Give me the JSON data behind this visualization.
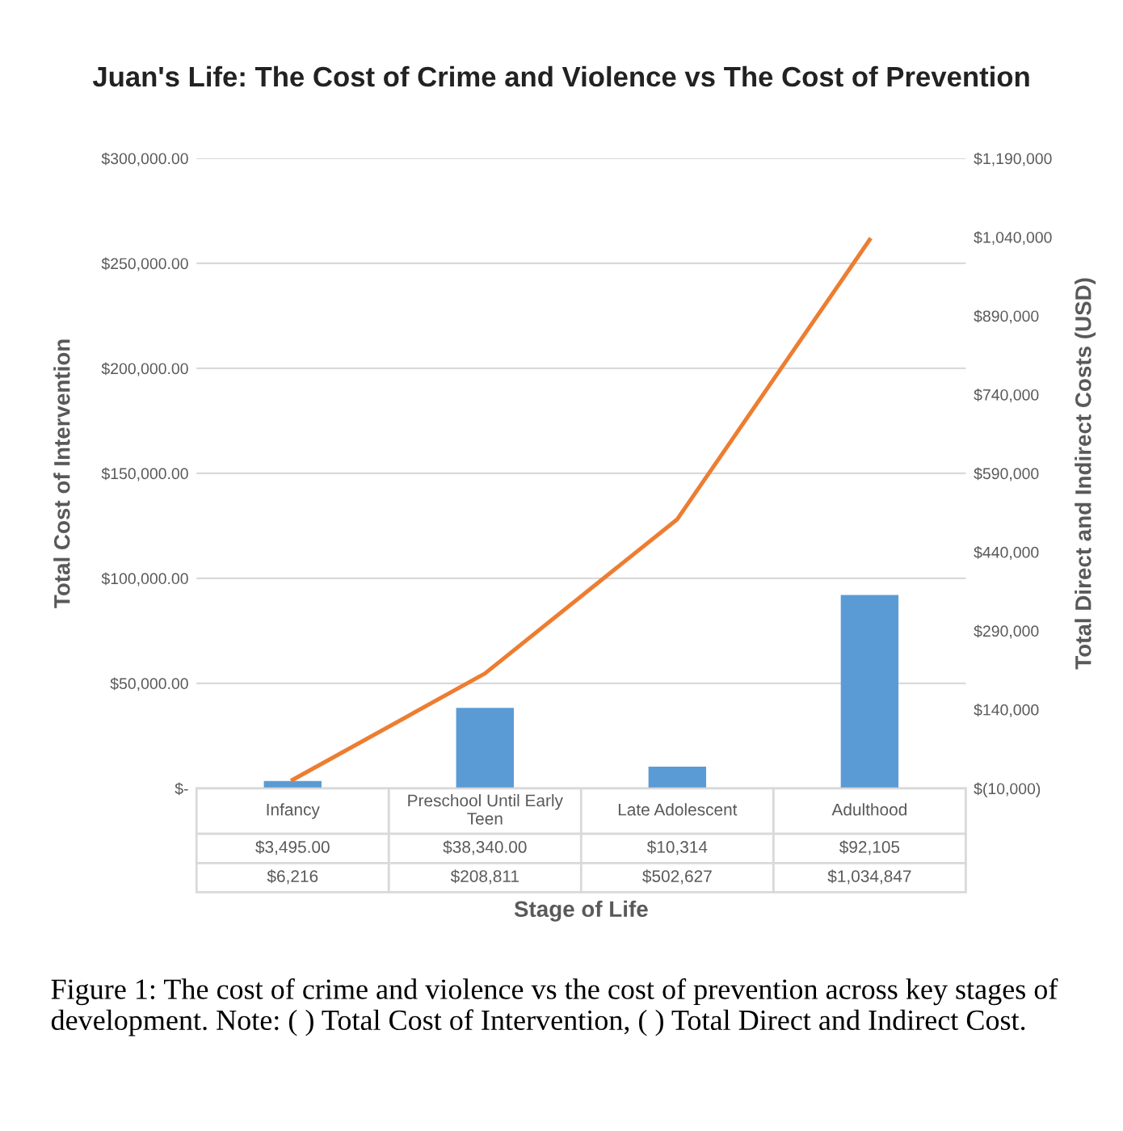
{
  "chart_data": {
    "type": "bar",
    "title": "Juan's Life: The Cost of Crime and Violence vs The Cost of Prevention",
    "xlabel": "Stage of Life",
    "ylabel": "Total Cost of Intervention",
    "y2label": "Total Direct and Indirect Costs (USD)",
    "categories": [
      "Infancy",
      "Preschool Until Early Teen",
      "Late Adolescent",
      "Adulthood"
    ],
    "series": [
      {
        "color": "#5b9bd5",
        "values": [
          3495,
          38340,
          10314,
          92105
        ],
        "value_labels": [
          "$3,495.00",
          "$38,340.00",
          "$10,314",
          "$92,105"
        ]
      },
      {
        "type": "line",
        "axis": "y2",
        "color": "#ed7d31",
        "values": [
          6216,
          208811,
          502627,
          1034847
        ],
        "value_labels": [
          "$6,216",
          "$208,811",
          "$502,627",
          "$1,034,847"
        ]
      }
    ],
    "ylim": [
      0,
      300000
    ],
    "yticks": [
      {
        "value": 0,
        "label": "$-"
      },
      {
        "value": 50000,
        "label": "$50,000.00"
      },
      {
        "value": 100000,
        "label": "$100,000.00"
      },
      {
        "value": 150000,
        "label": "$150,000.00"
      },
      {
        "value": 200000,
        "label": "$200,000.00"
      },
      {
        "value": 250000,
        "label": "$250,000.00"
      },
      {
        "value": 300000,
        "label": "$300,000.00"
      }
    ],
    "y2lim": [
      -10000,
      1190000
    ],
    "y2ticks": [
      {
        "value": -10000,
        "label": "$(10,000)"
      },
      {
        "value": 140000,
        "label": "$140,000"
      },
      {
        "value": 290000,
        "label": "$290,000"
      },
      {
        "value": 440000,
        "label": "$440,000"
      },
      {
        "value": 590000,
        "label": "$590,000"
      },
      {
        "value": 740000,
        "label": "$740,000"
      },
      {
        "value": 890000,
        "label": "$890,000"
      },
      {
        "value": 1040000,
        "label": "$1,040,000"
      },
      {
        "value": 1190000,
        "label": "$1,190,000"
      }
    ],
    "grid": "y",
    "marker": "none",
    "line_style": "solid",
    "annotations": [
      "Figure 1: The cost of crime and violence vs the cost of prevention across key stages of development. Note: ( ) Total Cost of Intervention, ( ) Total Direct and Indirect Cost."
    ]
  }
}
